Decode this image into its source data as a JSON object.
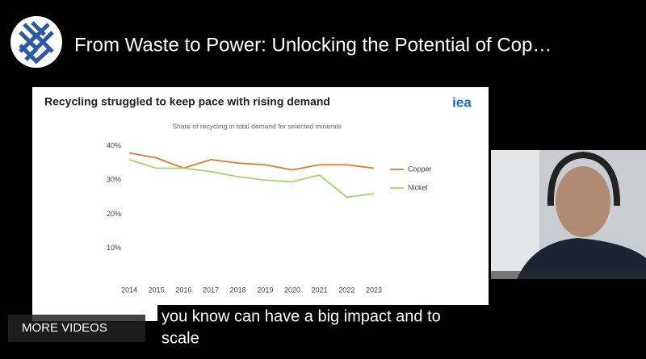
{
  "header": {
    "title": "From Waste to Power: Unlocking the Potential of Cop…"
  },
  "slide": {
    "title": "Recycling struggled to keep pace with rising demand",
    "logo": "iea"
  },
  "chart_data": {
    "type": "line",
    "title": "Share of recycling in total demand for selected minerals",
    "categories": [
      "2014",
      "2015",
      "2016",
      "2017",
      "2018",
      "2019",
      "2020",
      "2021",
      "2022",
      "2023"
    ],
    "series": [
      {
        "name": "Copper",
        "color": "#e07a2a",
        "values": [
          38,
          36.5,
          33.5,
          36,
          35,
          34.5,
          33,
          34.5,
          34.5,
          33.5
        ]
      },
      {
        "name": "Nickel",
        "color": "#a6d46a",
        "values": [
          36,
          33.5,
          33.5,
          32.5,
          31,
          30,
          29.5,
          31.5,
          25,
          26
        ]
      }
    ],
    "ylim": [
      0,
      40
    ],
    "yticks": [
      {
        "value": 10,
        "label": "10%"
      },
      {
        "value": 20,
        "label": "20%"
      },
      {
        "value": 30,
        "label": "30%"
      },
      {
        "value": 40,
        "label": "40%"
      }
    ],
    "grid": false,
    "legend": "right"
  },
  "overlay": {
    "more_videos": "MORE VIDEOS",
    "caption": [
      "you know can have a big impact and to",
      "scale"
    ]
  }
}
